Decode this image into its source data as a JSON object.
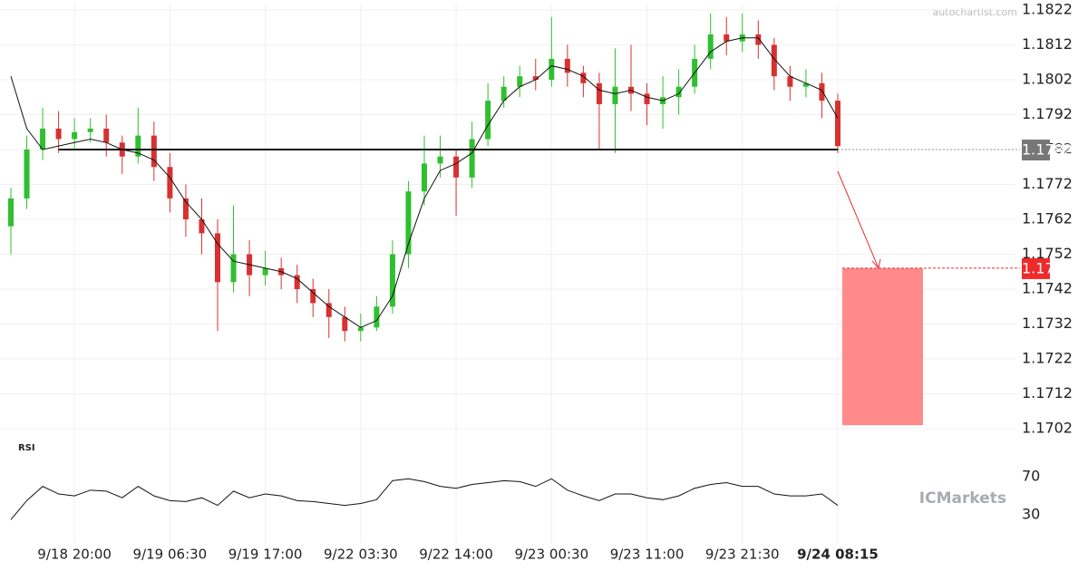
{
  "chart_data": {
    "type": "candlestick",
    "watermark": "autochartist.com",
    "logo": "ICMarkets",
    "rsi_title": "RSI",
    "categories": [
      null,
      null,
      null,
      null,
      "9/18 20:00",
      null,
      null,
      null,
      null,
      null,
      "9/19 06:30",
      null,
      null,
      null,
      null,
      null,
      "9/19 17:00",
      null,
      null,
      null,
      null,
      null,
      "9/22 03:30",
      null,
      null,
      null,
      null,
      null,
      "9/22 14:00",
      null,
      null,
      null,
      null,
      null,
      "9/23 00:30",
      null,
      null,
      null,
      null,
      null,
      "9/23 11:00",
      null,
      null,
      null,
      null,
      null,
      "9/23 21:30",
      null,
      null,
      null,
      null,
      null,
      "9/24 08:15"
    ],
    "open": [
      1.176,
      1.1768,
      1.1782,
      1.1788,
      1.1785,
      1.1787,
      1.1788,
      1.1784,
      1.178,
      1.1786,
      1.1777,
      1.1768,
      1.1762,
      1.1758,
      1.1744,
      1.1752,
      1.1746,
      1.1748,
      1.1746,
      1.1742,
      1.1738,
      1.1734,
      1.173,
      1.1731,
      1.1737,
      1.1752,
      1.177,
      1.1778,
      1.178,
      1.1774,
      1.1785,
      1.1796,
      1.18,
      1.1803,
      1.1802,
      1.1808,
      1.1804,
      1.1801,
      1.1795,
      1.18,
      1.1798,
      1.1795,
      1.1797,
      1.18,
      1.1808,
      1.1815,
      1.1813,
      1.1815,
      1.1812,
      1.1803,
      1.18,
      1.1801,
      1.1796
    ],
    "high": [
      1.1771,
      1.1786,
      1.1794,
      1.1793,
      1.1791,
      1.1791,
      1.1792,
      1.1786,
      1.1794,
      1.179,
      1.1781,
      1.1772,
      1.1768,
      1.1762,
      1.1766,
      1.1756,
      1.1753,
      1.1751,
      1.1749,
      1.1745,
      1.1742,
      1.1737,
      1.1735,
      1.174,
      1.1756,
      1.1773,
      1.1786,
      1.1786,
      1.1782,
      1.179,
      1.1801,
      1.1803,
      1.1806,
      1.1808,
      1.182,
      1.1812,
      1.1806,
      1.1804,
      1.1811,
      1.1812,
      1.1801,
      1.1803,
      1.1805,
      1.1812,
      1.1821,
      1.182,
      1.1821,
      1.1819,
      1.1814,
      1.1806,
      1.1805,
      1.1804,
      1.1798
    ],
    "low": [
      1.1752,
      1.1765,
      1.1779,
      1.1781,
      1.1782,
      1.1784,
      1.178,
      1.1775,
      1.1778,
      1.1773,
      1.1764,
      1.1757,
      1.1752,
      1.173,
      1.1741,
      1.174,
      1.1743,
      1.1742,
      1.1738,
      1.1734,
      1.1728,
      1.1727,
      1.1727,
      1.173,
      1.1735,
      1.1748,
      1.1766,
      1.1774,
      1.1763,
      1.1771,
      1.1783,
      1.1794,
      1.1797,
      1.1799,
      1.18,
      1.18,
      1.1797,
      1.1782,
      1.1781,
      1.1793,
      1.1789,
      1.1788,
      1.1792,
      1.1798,
      1.1805,
      1.1809,
      1.181,
      1.1808,
      1.1799,
      1.1796,
      1.1797,
      1.1791,
      1.1781
    ],
    "close": [
      1.1768,
      1.1782,
      1.1788,
      1.1785,
      1.1787,
      1.1788,
      1.1784,
      1.178,
      1.1786,
      1.1777,
      1.1768,
      1.1762,
      1.1758,
      1.1744,
      1.1752,
      1.1746,
      1.1748,
      1.1746,
      1.1742,
      1.1738,
      1.1734,
      1.173,
      1.1731,
      1.1737,
      1.1752,
      1.177,
      1.1778,
      1.178,
      1.1774,
      1.1785,
      1.1796,
      1.18,
      1.1803,
      1.1802,
      1.1808,
      1.1804,
      1.1801,
      1.1795,
      1.18,
      1.1798,
      1.1795,
      1.1797,
      1.18,
      1.1808,
      1.1815,
      1.1813,
      1.1815,
      1.1812,
      1.1803,
      1.18,
      1.1801,
      1.1796,
      1.1783
    ],
    "ma": [
      1.1803,
      1.1788,
      1.1782,
      1.1783,
      1.1784,
      1.1785,
      1.1784,
      1.1782,
      1.1781,
      1.1779,
      1.1774,
      1.1767,
      1.1762,
      1.1755,
      1.175,
      1.1749,
      1.1748,
      1.1747,
      1.1745,
      1.1741,
      1.1737,
      1.1734,
      1.1731,
      1.1733,
      1.174,
      1.1755,
      1.1768,
      1.1776,
      1.1778,
      1.1781,
      1.1789,
      1.1796,
      1.18,
      1.1802,
      1.1806,
      1.1805,
      1.1803,
      1.1799,
      1.1798,
      1.1799,
      1.1797,
      1.1796,
      1.1798,
      1.1804,
      1.181,
      1.1813,
      1.1814,
      1.1814,
      1.1808,
      1.1803,
      1.1801,
      1.1799,
      1.1791
    ],
    "rsi": [
      25,
      45,
      60,
      52,
      50,
      56,
      55,
      48,
      60,
      50,
      45,
      44,
      48,
      40,
      55,
      48,
      52,
      50,
      45,
      44,
      42,
      40,
      42,
      46,
      66,
      68,
      65,
      60,
      58,
      62,
      64,
      66,
      65,
      60,
      68,
      56,
      50,
      45,
      52,
      52,
      48,
      46,
      50,
      58,
      62,
      64,
      60,
      60,
      52,
      50,
      50,
      52,
      40
    ],
    "up_color": "#2fbf2f",
    "down_color": "#d93030",
    "ma_color": "#111111",
    "level": 1.1782,
    "target": 1.1748,
    "target_zone_low": 1.1703,
    "ylim": [
      1.1702,
      1.1822
    ],
    "yticks": [
      1.1702,
      1.1712,
      1.1722,
      1.1732,
      1.1742,
      1.1752,
      1.1762,
      1.1772,
      1.1782,
      1.1792,
      1.1802,
      1.1812,
      1.1822
    ],
    "rsi_ylim": [
      10,
      95
    ],
    "rsi_ticks": [
      30,
      70
    ],
    "grid": true
  }
}
